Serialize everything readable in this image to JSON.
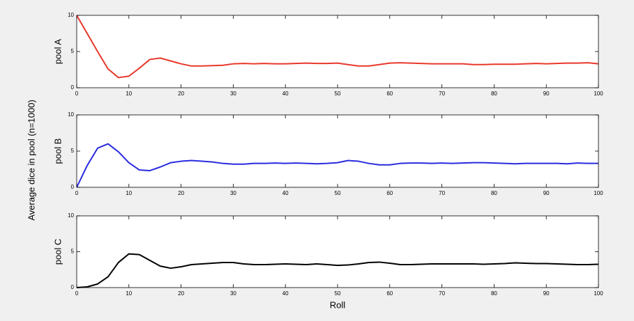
{
  "ylabel": "Average dice in pool (n=1000)",
  "chart_data": [
    {
      "type": "line",
      "ylabel": "pool A",
      "x": [
        0,
        2,
        4,
        6,
        8,
        10,
        12,
        14,
        16,
        18,
        20,
        22,
        24,
        26,
        28,
        30,
        32,
        34,
        36,
        38,
        40,
        42,
        44,
        46,
        48,
        50,
        52,
        54,
        56,
        58,
        60,
        62,
        64,
        66,
        68,
        70,
        72,
        74,
        76,
        78,
        80,
        82,
        84,
        86,
        88,
        90,
        92,
        94,
        96,
        98,
        100
      ],
      "series": [
        {
          "name": "pool A",
          "color": "#e8382b",
          "values": [
            10,
            7.5,
            5.0,
            2.6,
            1.4,
            1.6,
            2.7,
            3.9,
            4.1,
            3.7,
            3.3,
            3.0,
            3.0,
            3.05,
            3.1,
            3.3,
            3.35,
            3.3,
            3.35,
            3.3,
            3.3,
            3.35,
            3.4,
            3.35,
            3.35,
            3.4,
            3.2,
            3.0,
            3.0,
            3.2,
            3.4,
            3.45,
            3.4,
            3.35,
            3.3,
            3.3,
            3.3,
            3.3,
            3.2,
            3.2,
            3.25,
            3.25,
            3.25,
            3.3,
            3.35,
            3.3,
            3.35,
            3.4,
            3.4,
            3.45,
            3.3
          ]
        }
      ],
      "xlim": [
        0,
        100
      ],
      "xticks": [
        0,
        10,
        20,
        30,
        40,
        50,
        60,
        70,
        80,
        90,
        100
      ],
      "ylim": [
        0,
        10
      ],
      "yticks": [
        0,
        5,
        10
      ]
    },
    {
      "type": "line",
      "ylabel": "pool B",
      "x": [
        0,
        2,
        4,
        6,
        8,
        10,
        12,
        14,
        16,
        18,
        20,
        22,
        24,
        26,
        28,
        30,
        32,
        34,
        36,
        38,
        40,
        42,
        44,
        46,
        48,
        50,
        52,
        54,
        56,
        58,
        60,
        62,
        64,
        66,
        68,
        70,
        72,
        74,
        76,
        78,
        80,
        82,
        84,
        86,
        88,
        90,
        92,
        94,
        96,
        98,
        100
      ],
      "series": [
        {
          "name": "pool B",
          "color": "#2a2ae0",
          "values": [
            0,
            3.0,
            5.4,
            6.0,
            4.9,
            3.4,
            2.4,
            2.3,
            2.8,
            3.4,
            3.6,
            3.7,
            3.6,
            3.5,
            3.3,
            3.2,
            3.2,
            3.3,
            3.3,
            3.35,
            3.3,
            3.35,
            3.3,
            3.25,
            3.3,
            3.4,
            3.7,
            3.6,
            3.3,
            3.1,
            3.1,
            3.3,
            3.35,
            3.35,
            3.3,
            3.35,
            3.3,
            3.35,
            3.4,
            3.4,
            3.35,
            3.3,
            3.25,
            3.3,
            3.3,
            3.3,
            3.3,
            3.25,
            3.35,
            3.3,
            3.3
          ]
        }
      ],
      "xlim": [
        0,
        100
      ],
      "xticks": [
        0,
        10,
        20,
        30,
        40,
        50,
        60,
        70,
        80,
        90,
        100
      ],
      "ylim": [
        0,
        10
      ],
      "yticks": [
        0,
        5,
        10
      ]
    },
    {
      "type": "line",
      "ylabel": "pool C",
      "xlabel": "Roll",
      "x": [
        0,
        2,
        4,
        6,
        8,
        10,
        12,
        14,
        16,
        18,
        20,
        22,
        24,
        26,
        28,
        30,
        32,
        34,
        36,
        38,
        40,
        42,
        44,
        46,
        48,
        50,
        52,
        54,
        56,
        58,
        60,
        62,
        64,
        66,
        68,
        70,
        72,
        74,
        76,
        78,
        80,
        82,
        84,
        86,
        88,
        90,
        92,
        94,
        96,
        98,
        100
      ],
      "series": [
        {
          "name": "pool C",
          "color": "#000000",
          "values": [
            0,
            0.1,
            0.5,
            1.5,
            3.5,
            4.7,
            4.6,
            3.8,
            3.0,
            2.7,
            2.9,
            3.2,
            3.3,
            3.4,
            3.5,
            3.5,
            3.3,
            3.2,
            3.2,
            3.25,
            3.3,
            3.25,
            3.2,
            3.3,
            3.2,
            3.1,
            3.15,
            3.3,
            3.5,
            3.55,
            3.4,
            3.2,
            3.2,
            3.25,
            3.3,
            3.3,
            3.3,
            3.3,
            3.3,
            3.25,
            3.3,
            3.35,
            3.45,
            3.4,
            3.35,
            3.35,
            3.3,
            3.25,
            3.2,
            3.2,
            3.25
          ]
        }
      ],
      "xlim": [
        0,
        100
      ],
      "xticks": [
        0,
        10,
        20,
        30,
        40,
        50,
        60,
        70,
        80,
        90,
        100
      ],
      "ylim": [
        0,
        10
      ],
      "yticks": [
        0,
        5,
        10
      ]
    }
  ]
}
